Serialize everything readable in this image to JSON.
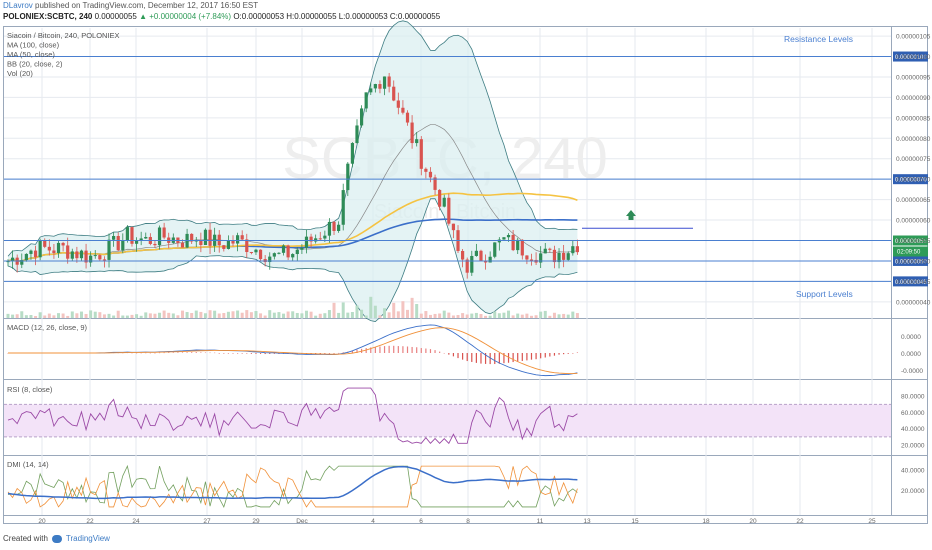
{
  "header": {
    "author": "DLavrov",
    "published": "published on TradingView.com, December 12, 2017 16:50 EST",
    "symbol": "POLONIEX:SCBTC, 240",
    "price": "0.00000055",
    "change": "▲ +0.00000004 (+7.84%)",
    "ohlc": "O:0.00000053 H:0.00000055 L:0.00000053 C:0.00000055"
  },
  "legend": [
    "Siacoin / Bitcoin, 240, POLONIEX",
    "MA (100, close)",
    "MA (50, close)",
    "BB (20, close, 2)",
    "Vol (20)"
  ],
  "watermark": {
    "big": "SCBTC, 240",
    "small": "Siacoin / Bitcoin"
  },
  "annotations": {
    "resistance": "Resistance Levels",
    "support": "Support Levels"
  },
  "panels": {
    "macd": "MACD (12, 26, close, 9)",
    "rsi": "RSI (8, close)",
    "dmi": "DMI (14, 14)"
  },
  "footer": {
    "created_with": "Created with",
    "brand": "TradingView"
  },
  "colors": {
    "grid": "#e6eaef",
    "bb_fill": "#d8eef0",
    "bb_line": "#3d7c82",
    "ma100": "#3b6fc9",
    "ma50": "#f5c342",
    "up": "#2e8b57",
    "down": "#d9534f",
    "level": "#4a7fd0",
    "rsi_fill": "#f3e3f8",
    "rsi": "#9b4aa6",
    "macd": "#3b6fc9",
    "signal": "#f0913a",
    "dmi_adx": "#3b6fc9",
    "dmi_plus": "#73a05f",
    "dmi_minus": "#f0913a"
  },
  "chart_data": [
    {
      "type": "candlestick",
      "title": "Siacoin / Bitcoin, 240, POLONIEX",
      "x_ticks": [
        "20",
        "22",
        "24",
        "27",
        "29",
        "Dec",
        "4",
        "6",
        "8",
        "11",
        "13",
        "15",
        "18",
        "20",
        "22",
        "25"
      ],
      "y_ticks": [
        "0.00000105",
        "0.00000100",
        "0.00000095",
        "0.00000090",
        "0.00000085",
        "0.00000080",
        "0.00000075",
        "0.00000070",
        "0.00000065",
        "0.00000060",
        "0.00000055",
        "0.00000050",
        "0.00000045",
        "0.00000040"
      ],
      "ylim": [
        3.8e-07,
        1.06e-06
      ],
      "price_path": [
        [
          0,
          50
        ],
        [
          6,
          53
        ],
        [
          12,
          53
        ],
        [
          18,
          51
        ],
        [
          22,
          53
        ],
        [
          26,
          56
        ],
        [
          30,
          55
        ],
        [
          34,
          56
        ],
        [
          38,
          55
        ],
        [
          42,
          56
        ],
        [
          46,
          54
        ],
        [
          50,
          55
        ],
        [
          54,
          53
        ],
        [
          58,
          51
        ],
        [
          62,
          52
        ],
        [
          66,
          55
        ],
        [
          72,
          60
        ],
        [
          74,
          72
        ],
        [
          78,
          90
        ],
        [
          82,
          96
        ],
        [
          85,
          88
        ],
        [
          88,
          80
        ],
        [
          90,
          75
        ],
        [
          92,
          70
        ],
        [
          95,
          63
        ],
        [
          98,
          52
        ],
        [
          100,
          49
        ],
        [
          104,
          52
        ],
        [
          108,
          55
        ],
        [
          112,
          53
        ],
        [
          118,
          51
        ],
        [
          122,
          53
        ],
        [
          125,
          55
        ]
      ],
      "levels": [
        {
          "value": 1e-06,
          "label": "0.00000100"
        },
        {
          "value": 7e-07,
          "label": "0.00000070"
        },
        {
          "value": 5.5e-07,
          "label": "0.00000055"
        },
        {
          "value": 5e-07,
          "label": "0.00000050"
        },
        {
          "value": 4.5e-07,
          "label": "0.00000045"
        }
      ],
      "countdown": "02:09:50",
      "arrow": "up"
    },
    {
      "type": "line",
      "title": "MACD (12, 26, close, 9)",
      "y_ticks": [
        "0.0000",
        "0.0000",
        "-0.0000"
      ]
    },
    {
      "type": "line",
      "title": "RSI (8, close)",
      "y_ticks": [
        "80.0000",
        "60.0000",
        "40.0000",
        "20.0000"
      ],
      "ylim": [
        15,
        95
      ],
      "band": [
        30,
        70
      ]
    },
    {
      "type": "line",
      "title": "DMI (14, 14)",
      "y_ticks": [
        "40.0000",
        "20.0000"
      ],
      "ylim": [
        0,
        50
      ]
    }
  ]
}
